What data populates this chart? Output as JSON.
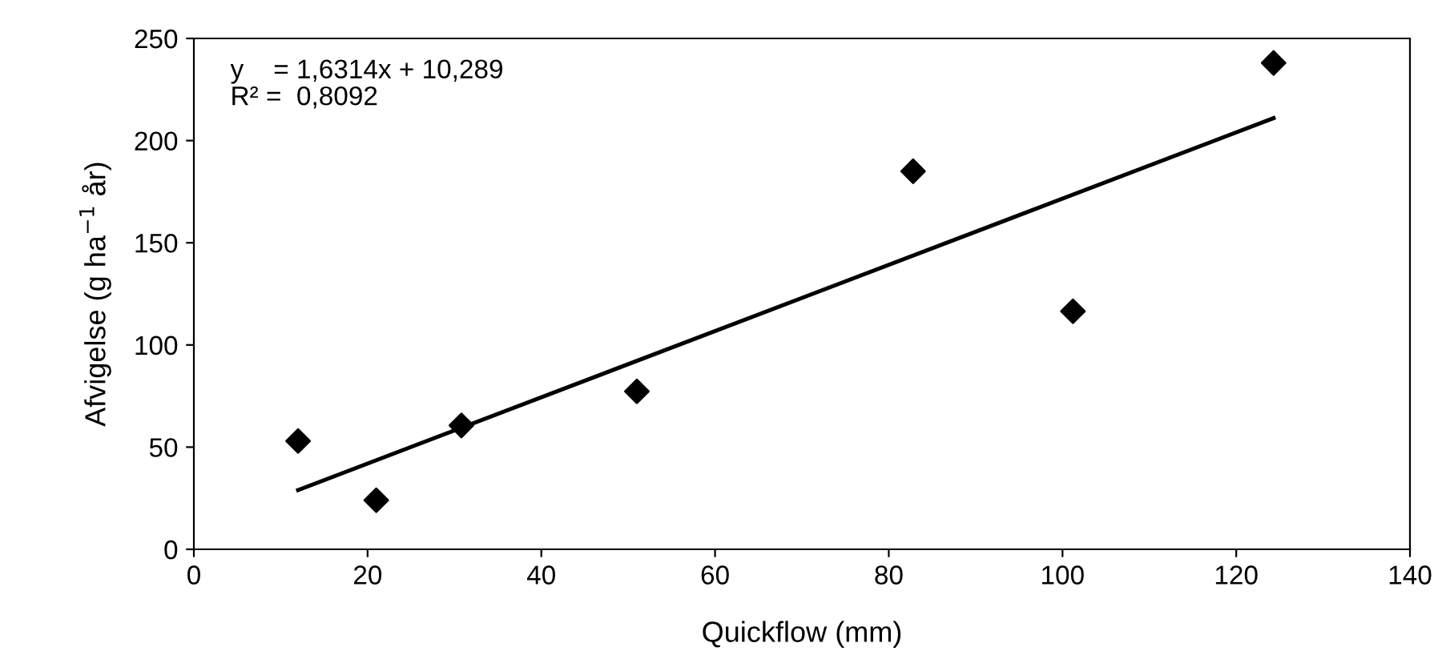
{
  "chart_data": {
    "type": "scatter",
    "xlabel": "Quickflow (mm)",
    "ylabel": "Afvigelse (g ha$^{−1}$ år)",
    "xlim": [
      0,
      140
    ],
    "xticks": [
      0,
      20,
      40,
      60,
      80,
      100,
      120,
      140
    ],
    "ylim": [
      0,
      250
    ],
    "yticks": [
      0,
      50,
      100,
      150,
      200,
      250
    ],
    "grid": false,
    "legend": false,
    "series": [
      {
        "color": "#000000",
        "marker": "diamond",
        "x": [
          12.0,
          21.0,
          30.8,
          51.0,
          82.8,
          101.2,
          124.3
        ],
        "values": [
          53,
          24,
          60.6,
          77.3,
          185,
          116.5,
          238
        ]
      },
      {
        "type": "line",
        "color": "#000000",
        "marker": "none",
        "line_style": "solid",
        "x": [
          12.0,
          124.3
        ],
        "values": [
          29,
          211
        ]
      }
    ],
    "annotations": [
      "y    = 1,6314x + 10,289\nR² =  0,8092"
    ]
  }
}
